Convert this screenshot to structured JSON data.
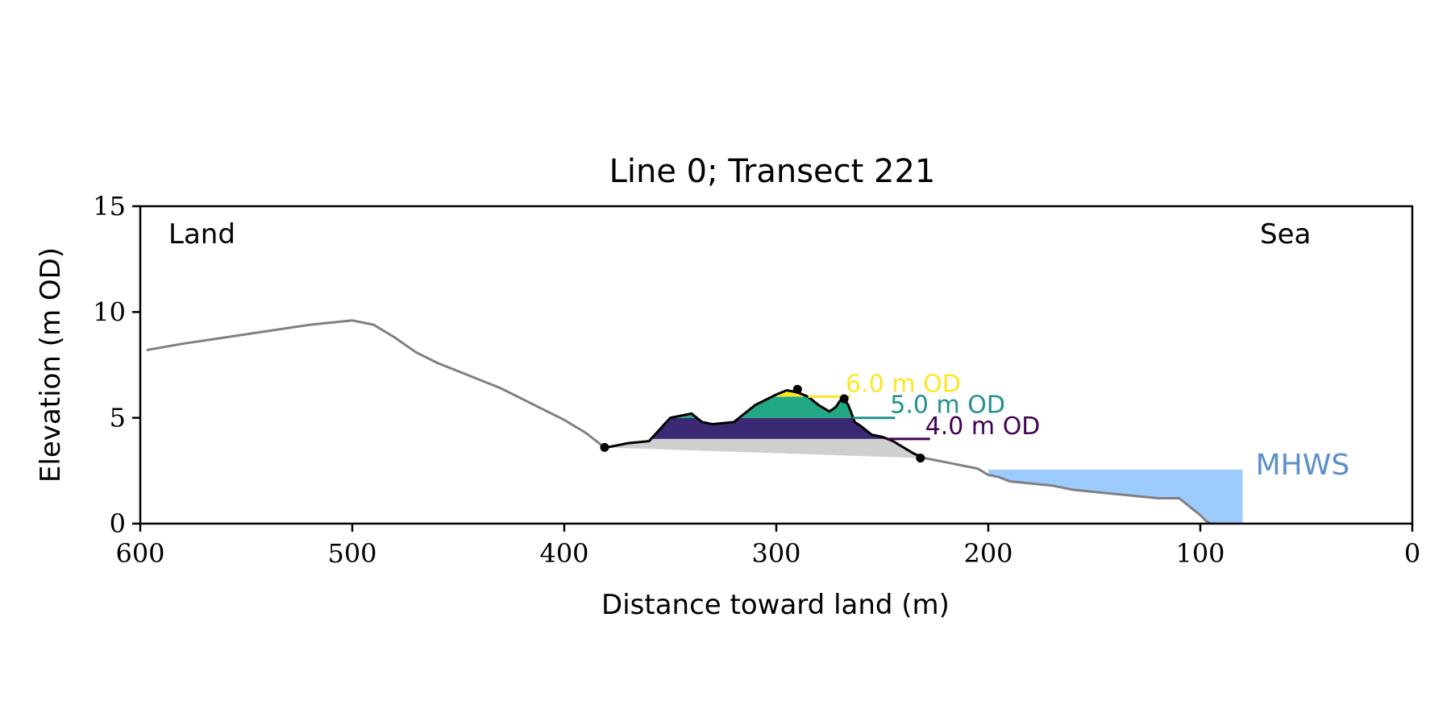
{
  "chart_data": {
    "type": "area",
    "title": "Line 0; Transect 221",
    "xlabel": "Distance toward land (m)",
    "ylabel": "Elevation (m OD)",
    "xlim": [
      600,
      0
    ],
    "ylim": [
      0,
      15
    ],
    "x_ticks": [
      600,
      500,
      400,
      300,
      200,
      100,
      0
    ],
    "y_ticks": [
      0,
      5,
      10,
      15
    ],
    "grid": false,
    "corner_labels": {
      "left": "Land",
      "right": "Sea"
    },
    "profile": {
      "x": [
        597,
        580,
        560,
        540,
        520,
        500,
        490,
        480,
        470,
        460,
        450,
        440,
        430,
        420,
        410,
        400,
        390,
        380,
        370,
        360,
        350,
        345,
        340,
        335,
        330,
        320,
        310,
        300,
        295,
        290,
        285,
        280,
        275,
        272,
        270,
        268,
        266,
        263,
        260,
        255,
        250,
        245,
        240,
        235,
        230,
        220,
        210,
        205,
        200,
        195,
        190,
        180,
        170,
        160,
        150,
        140,
        130,
        120,
        110,
        105,
        100,
        97,
        95
      ],
      "y": [
        8.2,
        8.5,
        8.8,
        9.1,
        9.4,
        9.6,
        9.4,
        8.8,
        8.1,
        7.6,
        7.2,
        6.8,
        6.4,
        5.9,
        5.4,
        4.9,
        4.3,
        3.6,
        3.8,
        3.9,
        5.0,
        5.1,
        5.2,
        4.8,
        4.7,
        4.8,
        5.6,
        6.1,
        6.3,
        6.2,
        6.0,
        5.6,
        5.3,
        5.5,
        5.8,
        5.9,
        5.6,
        4.8,
        4.6,
        4.2,
        4.1,
        3.9,
        3.6,
        3.3,
        3.1,
        2.9,
        2.7,
        2.6,
        2.3,
        2.2,
        2.0,
        1.9,
        1.8,
        1.6,
        1.5,
        1.4,
        1.3,
        1.2,
        1.2,
        0.8,
        0.4,
        0.1,
        0.0
      ]
    },
    "dune": {
      "toe": [
        381,
        3.6
      ],
      "crest": [
        290,
        6.35
      ],
      "heel": [
        232,
        3.1
      ],
      "inflection": [
        268,
        5.9
      ]
    },
    "thresholds": [
      {
        "label": "6.0 m OD",
        "value": 6.0,
        "color": "#fde725"
      },
      {
        "label": "5.0 m OD",
        "value": 5.0,
        "color": "#21918c"
      },
      {
        "label": "4.0 m OD",
        "value": 4.0,
        "color": "#440154"
      }
    ],
    "fills": {
      "base": "#cfcfcf",
      "band_4_5": "#3b2a73",
      "band_5_6": "#22a884",
      "band_6_plus": "#fde725"
    },
    "mhws": {
      "label": "MHWS",
      "value": 2.55,
      "x_range": [
        200,
        80
      ],
      "color": "#9cccff",
      "label_color": "#5b8fc9"
    },
    "profile_color": "#808080"
  }
}
